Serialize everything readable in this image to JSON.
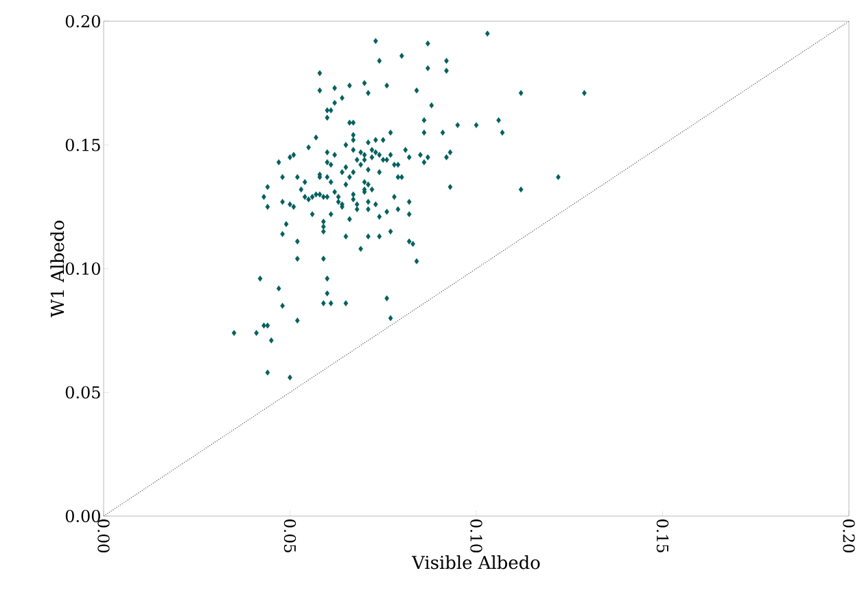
{
  "chart_data": {
    "type": "scatter",
    "xlabel": "Visible Albedo",
    "ylabel": "W1 Albedo",
    "xlim": [
      0,
      0.2
    ],
    "ylim": [
      0,
      0.2
    ],
    "xticks": [
      {
        "value": 0,
        "label": "0.00"
      },
      {
        "value": 0.05,
        "label": "0.05"
      },
      {
        "value": 0.1,
        "label": "0.10"
      },
      {
        "value": 0.15,
        "label": "0.15"
      },
      {
        "value": 0.2,
        "label": "0.20"
      }
    ],
    "yticks": [
      {
        "value": 0,
        "label": "0.00"
      },
      {
        "value": 0.05,
        "label": "0.05"
      },
      {
        "value": 0.1,
        "label": "0.10"
      },
      {
        "value": 0.15,
        "label": "0.15"
      },
      {
        "value": 0.2,
        "label": "0.20"
      }
    ],
    "marker": "diamond",
    "series": [
      {
        "color": "#00605e",
        "x": [
          0.073,
          0.103,
          0.087,
          0.08,
          0.074,
          0.092,
          0.092,
          0.058,
          0.087,
          0.07,
          0.066,
          0.076,
          0.058,
          0.062,
          0.071,
          0.064,
          0.084,
          0.112,
          0.129,
          0.062,
          0.06,
          0.061,
          0.088,
          0.06,
          0.066,
          0.067,
          0.086,
          0.106,
          0.1,
          0.095,
          0.107,
          0.077,
          0.086,
          0.091,
          0.057,
          0.067,
          0.067,
          0.071,
          0.073,
          0.075,
          0.065,
          0.06,
          0.062,
          0.067,
          0.069,
          0.07,
          0.072,
          0.073,
          0.068,
          0.07,
          0.072,
          0.074,
          0.077,
          0.081,
          0.082,
          0.085,
          0.087,
          0.086,
          0.092,
          0.093,
          0.076,
          0.078,
          0.079,
          0.079,
          0.08,
          0.075,
          0.069,
          0.071,
          0.061,
          0.065,
          0.064,
          0.058,
          0.06,
          0.061,
          0.066,
          0.067,
          0.074,
          0.093,
          0.065,
          0.07,
          0.071,
          0.07,
          0.07,
          0.072,
          0.057,
          0.059,
          0.062,
          0.063,
          0.063,
          0.064,
          0.067,
          0.067,
          0.068,
          0.071,
          0.073,
          0.078,
          0.082,
          0.079,
          0.082,
          0.076,
          0.074,
          0.071,
          0.068,
          0.064,
          0.066,
          0.061,
          0.059,
          0.059,
          0.065,
          0.071,
          0.074,
          0.077,
          0.069,
          0.082,
          0.083,
          0.084,
          0.112,
          0.122,
          0.056,
          0.059,
          0.049,
          0.048,
          0.052,
          0.052,
          0.059,
          0.042,
          0.047,
          0.048,
          0.052,
          0.06,
          0.06,
          0.059,
          0.061,
          0.065,
          0.076,
          0.077,
          0.043,
          0.044,
          0.035,
          0.041,
          0.045,
          0.044,
          0.05,
          0.055,
          0.051,
          0.05,
          0.047,
          0.048,
          0.044,
          0.043,
          0.044,
          0.048,
          0.05,
          0.051,
          0.052,
          0.054,
          0.053,
          0.054,
          0.055,
          0.056,
          0.058,
          0.06,
          0.058,
          0.06
        ],
        "values": [
          0.192,
          0.195,
          0.191,
          0.186,
          0.184,
          0.184,
          0.18,
          0.179,
          0.181,
          0.175,
          0.174,
          0.174,
          0.172,
          0.173,
          0.171,
          0.169,
          0.172,
          0.171,
          0.171,
          0.167,
          0.164,
          0.164,
          0.166,
          0.161,
          0.159,
          0.159,
          0.16,
          0.16,
          0.158,
          0.158,
          0.155,
          0.155,
          0.155,
          0.155,
          0.153,
          0.154,
          0.152,
          0.151,
          0.152,
          0.152,
          0.15,
          0.147,
          0.146,
          0.148,
          0.147,
          0.146,
          0.148,
          0.147,
          0.144,
          0.144,
          0.145,
          0.146,
          0.146,
          0.148,
          0.145,
          0.146,
          0.145,
          0.143,
          0.145,
          0.147,
          0.144,
          0.142,
          0.142,
          0.137,
          0.137,
          0.144,
          0.142,
          0.14,
          0.142,
          0.141,
          0.139,
          0.138,
          0.137,
          0.135,
          0.137,
          0.139,
          0.139,
          0.133,
          0.134,
          0.135,
          0.134,
          0.132,
          0.131,
          0.132,
          0.13,
          0.129,
          0.131,
          0.129,
          0.127,
          0.126,
          0.13,
          0.128,
          0.126,
          0.127,
          0.126,
          0.129,
          0.127,
          0.124,
          0.122,
          0.123,
          0.121,
          0.124,
          0.124,
          0.125,
          0.12,
          0.122,
          0.119,
          0.117,
          0.113,
          0.113,
          0.113,
          0.115,
          0.108,
          0.111,
          0.11,
          0.103,
          0.132,
          0.137,
          0.122,
          0.115,
          0.118,
          0.114,
          0.111,
          0.104,
          0.104,
          0.096,
          0.092,
          0.085,
          0.079,
          0.096,
          0.09,
          0.086,
          0.086,
          0.086,
          0.088,
          0.08,
          0.077,
          0.077,
          0.074,
          0.074,
          0.071,
          0.058,
          0.056,
          0.149,
          0.146,
          0.145,
          0.143,
          0.137,
          0.133,
          0.129,
          0.125,
          0.127,
          0.126,
          0.125,
          0.137,
          0.135,
          0.132,
          0.129,
          0.128,
          0.129,
          0.13,
          0.129,
          0.137,
          0.143
        ]
      },
      {
        "type": "line",
        "color": "#555555",
        "marker": "none",
        "line_style": "dotted",
        "x": [
          0,
          0.2
        ],
        "values": [
          0,
          0.2
        ]
      }
    ]
  }
}
